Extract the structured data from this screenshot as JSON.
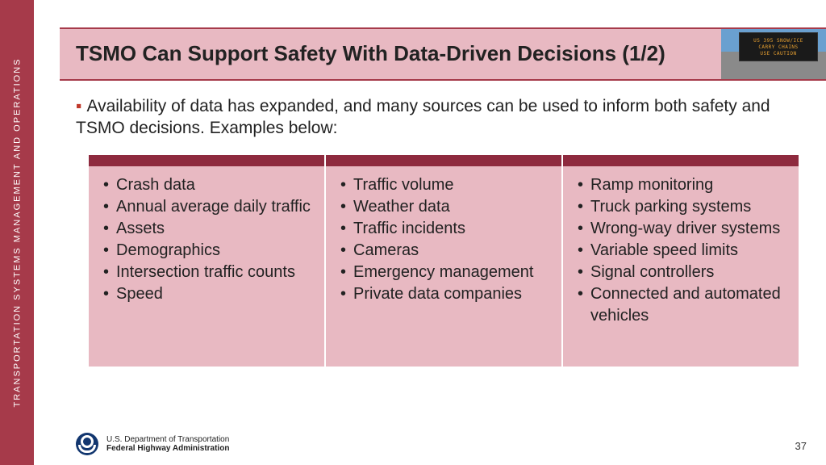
{
  "sidebar": {
    "label": "TRANSPORTATION SYSTEMS MANAGEMENT AND OPERATIONS",
    "bg_color": "#a63a4a",
    "text_color": "#ffffff"
  },
  "title": {
    "text": "TSMO Can Support Safety With Data-Driven Decisions (1/2)",
    "band_color": "#e8b9c2",
    "border_color": "#a63a4a",
    "font_size": 26
  },
  "sign": {
    "lines": [
      "US 395 SNOW/ICE",
      "CARRY CHAINS",
      "USE CAUTION"
    ],
    "text_color": "#e8a030",
    "board_bg": "#1a1a1a"
  },
  "intro": {
    "bullet": "▪",
    "text": "Availability of data has expanded, and many sources can be used to inform both safety and TSMO decisions. Examples below:",
    "bullet_color": "#c0392b",
    "font_size": 21
  },
  "table": {
    "header_color": "#8e2a3e",
    "cell_color": "#e8b9c2",
    "columns": [
      {
        "items": [
          "Crash data",
          "Annual average daily traffic",
          "Assets",
          "Demographics",
          "Intersection traffic counts",
          "Speed"
        ]
      },
      {
        "items": [
          "Traffic volume",
          "Weather data",
          "Traffic incidents",
          "Cameras",
          "Emergency management",
          "Private data companies"
        ]
      },
      {
        "items": [
          "Ramp monitoring",
          "Truck parking systems",
          "Wrong-way driver systems",
          "Variable speed limits",
          "Signal controllers",
          "Connected and automated vehicles"
        ]
      }
    ],
    "item_font_size": 20
  },
  "footer": {
    "line1": "U.S. Department of Transportation",
    "line2": "Federal Highway Administration",
    "logo_color": "#12366f"
  },
  "page_number": "37"
}
